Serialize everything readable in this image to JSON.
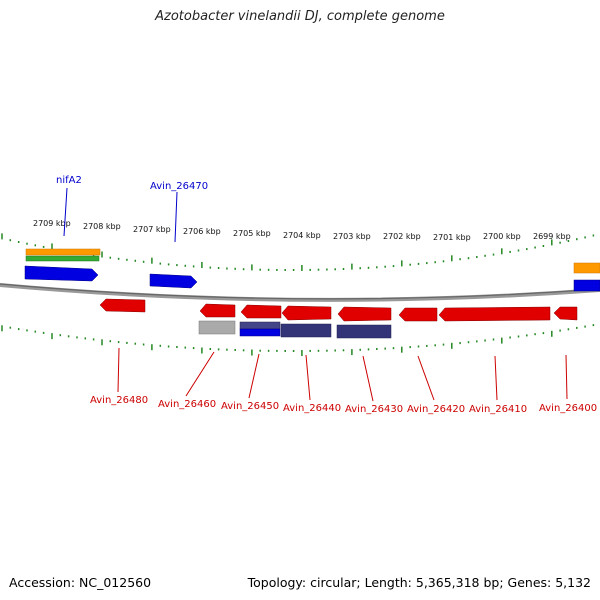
{
  "title": "Azotobacter vinelandii DJ, complete genome",
  "footer": {
    "accession": "Accession: NC_012560",
    "summary": "Topology: circular; Length: 5,365,318 bp; Genes: 5,132"
  },
  "colors": {
    "forward_cds": "#0000e0",
    "reverse_cds": "#e00000",
    "gene_bar": "#ff9900",
    "green_bar": "#33aa33",
    "grey_feature": "#aaaaaa",
    "navy_feature": "#333377",
    "backbone": "#888888",
    "ticks": "#228822",
    "label_forward": "#0000cc",
    "label_reverse": "#cc0000"
  },
  "scale_labels": [
    "2709 kbp",
    "2708 kbp",
    "2707 kbp",
    "2706 kbp",
    "2705 kbp",
    "2704 kbp",
    "2703 kbp",
    "2702 kbp",
    "2701 kbp",
    "2700 kbp",
    "2699 kbp"
  ],
  "gene_labels": {
    "top": [
      "nifA2",
      "Avin_26470"
    ],
    "bottom": [
      "Avin_26480",
      "Avin_26460",
      "Avin_26450",
      "Avin_26440",
      "Avin_26430",
      "Avin_26420",
      "Avin_26410",
      "Avin_26400"
    ]
  }
}
